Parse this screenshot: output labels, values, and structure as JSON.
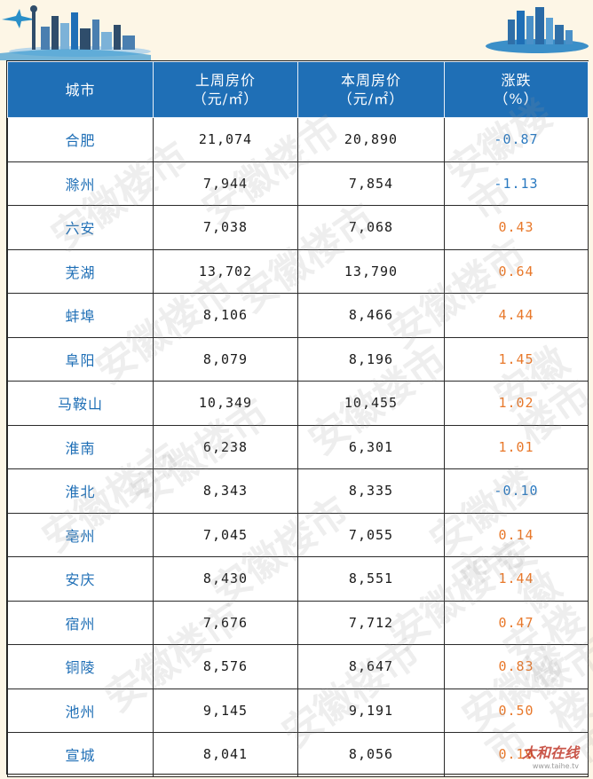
{
  "table": {
    "headers": [
      {
        "line1": "城市",
        "line2": ""
      },
      {
        "line1": "上周房价",
        "line2": "（元/㎡）"
      },
      {
        "line1": "本周房价",
        "line2": "（元/㎡）"
      },
      {
        "line1": "涨跌",
        "line2": "（%）"
      }
    ],
    "rows": [
      {
        "city": "合肥",
        "last_week": "21,074",
        "this_week": "20,890",
        "change": "-0.87",
        "trend": "down"
      },
      {
        "city": "滁州",
        "last_week": "7,944",
        "this_week": "7,854",
        "change": "-1.13",
        "trend": "down"
      },
      {
        "city": "六安",
        "last_week": "7,038",
        "this_week": "7,068",
        "change": "0.43",
        "trend": "up"
      },
      {
        "city": "芜湖",
        "last_week": "13,702",
        "this_week": "13,790",
        "change": "0.64",
        "trend": "up"
      },
      {
        "city": "蚌埠",
        "last_week": "8,106",
        "this_week": "8,466",
        "change": "4.44",
        "trend": "up"
      },
      {
        "city": "阜阳",
        "last_week": "8,079",
        "this_week": "8,196",
        "change": "1.45",
        "trend": "up"
      },
      {
        "city": "马鞍山",
        "last_week": "10,349",
        "this_week": "10,455",
        "change": "1.02",
        "trend": "up"
      },
      {
        "city": "淮南",
        "last_week": "6,238",
        "this_week": "6,301",
        "change": "1.01",
        "trend": "up"
      },
      {
        "city": "淮北",
        "last_week": "8,343",
        "this_week": "8,335",
        "change": "-0.10",
        "trend": "down"
      },
      {
        "city": "亳州",
        "last_week": "7,045",
        "this_week": "7,055",
        "change": "0.14",
        "trend": "up"
      },
      {
        "city": "安庆",
        "last_week": "8,430",
        "this_week": "8,551",
        "change": "1.44",
        "trend": "up"
      },
      {
        "city": "宿州",
        "last_week": "7,676",
        "this_week": "7,712",
        "change": "0.47",
        "trend": "up"
      },
      {
        "city": "铜陵",
        "last_week": "8,576",
        "this_week": "8,647",
        "change": "0.83",
        "trend": "up"
      },
      {
        "city": "池州",
        "last_week": "9,145",
        "this_week": "9,191",
        "change": "0.50",
        "trend": "up"
      },
      {
        "city": "宣城",
        "last_week": "8,041",
        "this_week": "8,056",
        "change": "0.19",
        "trend": "up"
      }
    ]
  },
  "watermark": "安徽楼市",
  "logo": {
    "text": "太和在线",
    "url_text": "www.taihe.tv"
  },
  "colors": {
    "header_bg": "#1f6fb6",
    "city_text": "#1f6fb6",
    "up": "#e8782a",
    "down": "#2a79c0",
    "page_bg": "#fdf6e6"
  }
}
